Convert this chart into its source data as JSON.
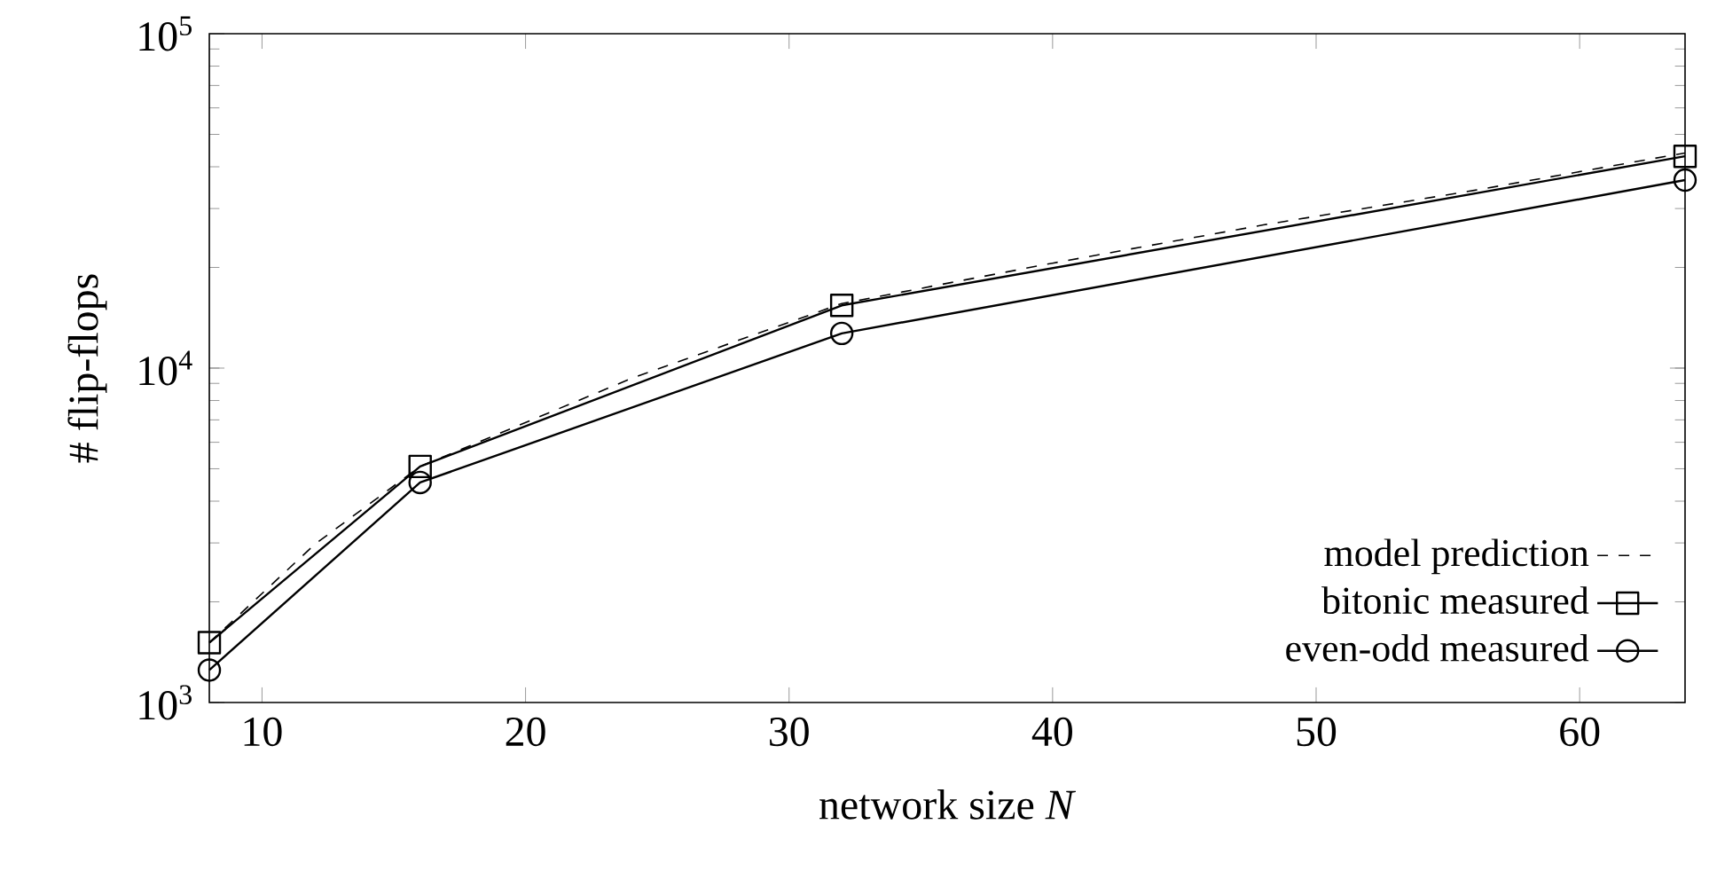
{
  "chart_data": {
    "type": "line",
    "xlabel": "network size *N*",
    "ylabel": "# flip-flops",
    "log": "y",
    "legend": "bottom right",
    "xlim": [
      8,
      64
    ],
    "xticks": [
      10,
      20,
      30,
      40,
      50,
      60
    ],
    "ylim": [
      1000,
      100000
    ],
    "yticks": [
      {
        "value": 1000,
        "label": "10$^{3}$"
      },
      {
        "value": 10000,
        "label": "10$^{4}$"
      },
      {
        "value": 100000,
        "label": "10$^{5}$"
      }
    ],
    "x": [
      8,
      16,
      32,
      64
    ],
    "series": [
      {
        "name": "model prediction",
        "color": "#000000",
        "marker": "none",
        "line_style": "dashed",
        "x": [
          8,
          12,
          16,
          24,
          32,
          40,
          48,
          56,
          64
        ],
        "values": [
          1510,
          2970,
          5080,
          9300,
          15600,
          20600,
          26800,
          34000,
          44000
        ]
      },
      {
        "name": "bitonic measured",
        "color": "#000000",
        "marker": "square",
        "line_style": "solid",
        "values": [
          1510,
          5080,
          15400,
          43000
        ]
      },
      {
        "name": "even-odd measured",
        "color": "#000000",
        "marker": "circle",
        "line_style": "solid",
        "values": [
          1250,
          4550,
          12700,
          36500
        ]
      }
    ]
  }
}
